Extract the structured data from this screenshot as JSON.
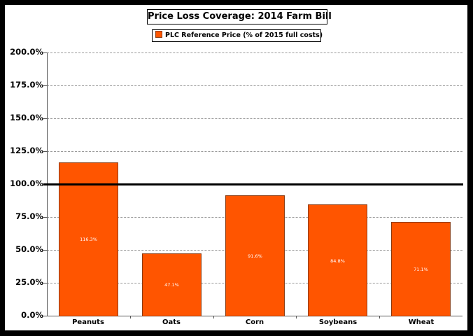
{
  "chart_data": {
    "type": "bar",
    "title": "Price Loss Coverage:  2014 Farm Bill",
    "legend": [
      "PLC Reference Price (% of 2015 full costs)"
    ],
    "legend_position": "top",
    "categories": [
      "Peanuts",
      "Oats",
      "Corn",
      "Soybeans",
      "Wheat"
    ],
    "series": [
      {
        "name": "PLC Reference Price (% of 2015 full costs)",
        "values": [
          116.3,
          47.1,
          91.6,
          84.8,
          71.1
        ],
        "color": "#ff5500"
      }
    ],
    "data_labels": [
      "116.3%",
      "47.1%",
      "91.6%",
      "84.8%",
      "71.1%"
    ],
    "xlabel": "",
    "ylabel": "",
    "ylim": [
      0,
      200
    ],
    "yticks": [
      "0.0%",
      "25.0%",
      "50.0%",
      "75.0%",
      "100.0%",
      "125.0%",
      "150.0%",
      "175.0%",
      "200.0%"
    ],
    "reference_line": 100,
    "grid": true
  },
  "title": "Price Loss Coverage:  2014 Farm Bill",
  "legend_label": "PLC Reference Price (% of 2015 full costs)"
}
